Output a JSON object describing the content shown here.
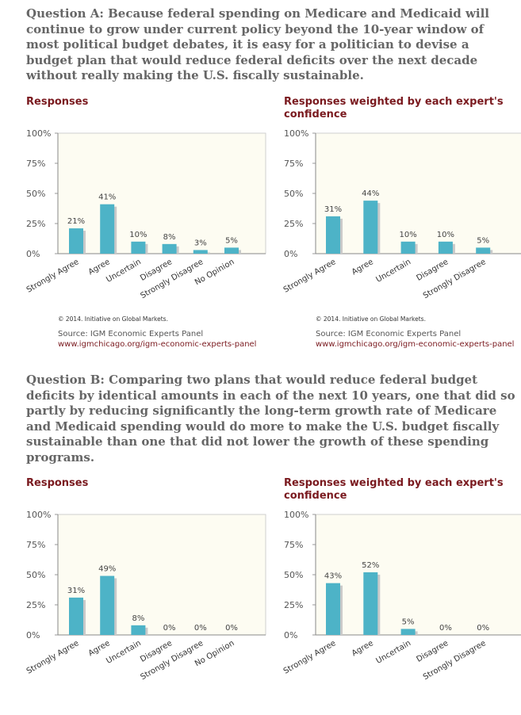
{
  "questions": [
    {
      "text": "Question A: Because federal spending on Medicare and Medicaid will continue to grow under current policy beyond the 10-year window of most political budget debates, it is easy for a politician to devise a budget plan that would reduce federal deficits over the next decade without really making the U.S. fiscally sustainable."
    },
    {
      "text": "Question B: Comparing two plans that would reduce federal budget deficits by identical amounts in each of the next 10 years, one that did so partly by reducing significantly the long-term growth rate of Medicare and Medicaid spending would do more to make the U.S. budget fiscally sustainable than one that did not lower the growth of these spending programs."
    }
  ],
  "footer": {
    "copyright": "© 2014. Initiative on Global Markets.",
    "source_label": "Source: IGM Economic Experts Panel",
    "source_link": "www.igmchicago.org/igm-economic-experts-panel"
  },
  "colors": {
    "bar": "#4db3c7",
    "bar_shadow": "#c9c9c9",
    "plot_bg": "#fdfcf2",
    "title": "#7a1a1f"
  },
  "chart_data": [
    {
      "type": "bar",
      "title": "Responses",
      "categories": [
        "Strongly Agree",
        "Agree",
        "Uncertain",
        "Disagree",
        "Strongly Disagree",
        "No Opinion"
      ],
      "values": [
        21,
        41,
        10,
        8,
        3,
        5
      ],
      "value_labels": [
        "21%",
        "41%",
        "10%",
        "8%",
        "3%",
        "5%"
      ],
      "ylim": [
        0,
        100
      ],
      "yticks": [
        "0%",
        "25%",
        "50%",
        "75%",
        "100%"
      ]
    },
    {
      "type": "bar",
      "title": "Responses weighted by each expert's confidence",
      "categories": [
        "Strongly Agree",
        "Agree",
        "Uncertain",
        "Disagree",
        "Strongly Disagree"
      ],
      "values": [
        31,
        44,
        10,
        10,
        5
      ],
      "value_labels": [
        "31%",
        "44%",
        "10%",
        "10%",
        "5%"
      ],
      "ylim": [
        0,
        100
      ],
      "yticks": [
        "0%",
        "25%",
        "50%",
        "75%",
        "100%"
      ]
    },
    {
      "type": "bar",
      "title": "Responses",
      "categories": [
        "Strongly Agree",
        "Agree",
        "Uncertain",
        "Disagree",
        "Strongly Disagree",
        "No Opinion"
      ],
      "values": [
        31,
        49,
        8,
        0,
        0,
        0
      ],
      "value_labels": [
        "31%",
        "49%",
        "8%",
        "0%",
        "0%",
        "0%"
      ],
      "ylim": [
        0,
        100
      ],
      "yticks": [
        "0%",
        "25%",
        "50%",
        "75%",
        "100%"
      ]
    },
    {
      "type": "bar",
      "title": "Responses weighted by each expert's confidence",
      "categories": [
        "Strongly Agree",
        "Agree",
        "Uncertain",
        "Disagree",
        "Strongly Disagree"
      ],
      "values": [
        43,
        52,
        5,
        0,
        0
      ],
      "value_labels": [
        "43%",
        "52%",
        "5%",
        "0%",
        "0%"
      ],
      "ylim": [
        0,
        100
      ],
      "yticks": [
        "0%",
        "25%",
        "50%",
        "75%",
        "100%"
      ]
    }
  ]
}
